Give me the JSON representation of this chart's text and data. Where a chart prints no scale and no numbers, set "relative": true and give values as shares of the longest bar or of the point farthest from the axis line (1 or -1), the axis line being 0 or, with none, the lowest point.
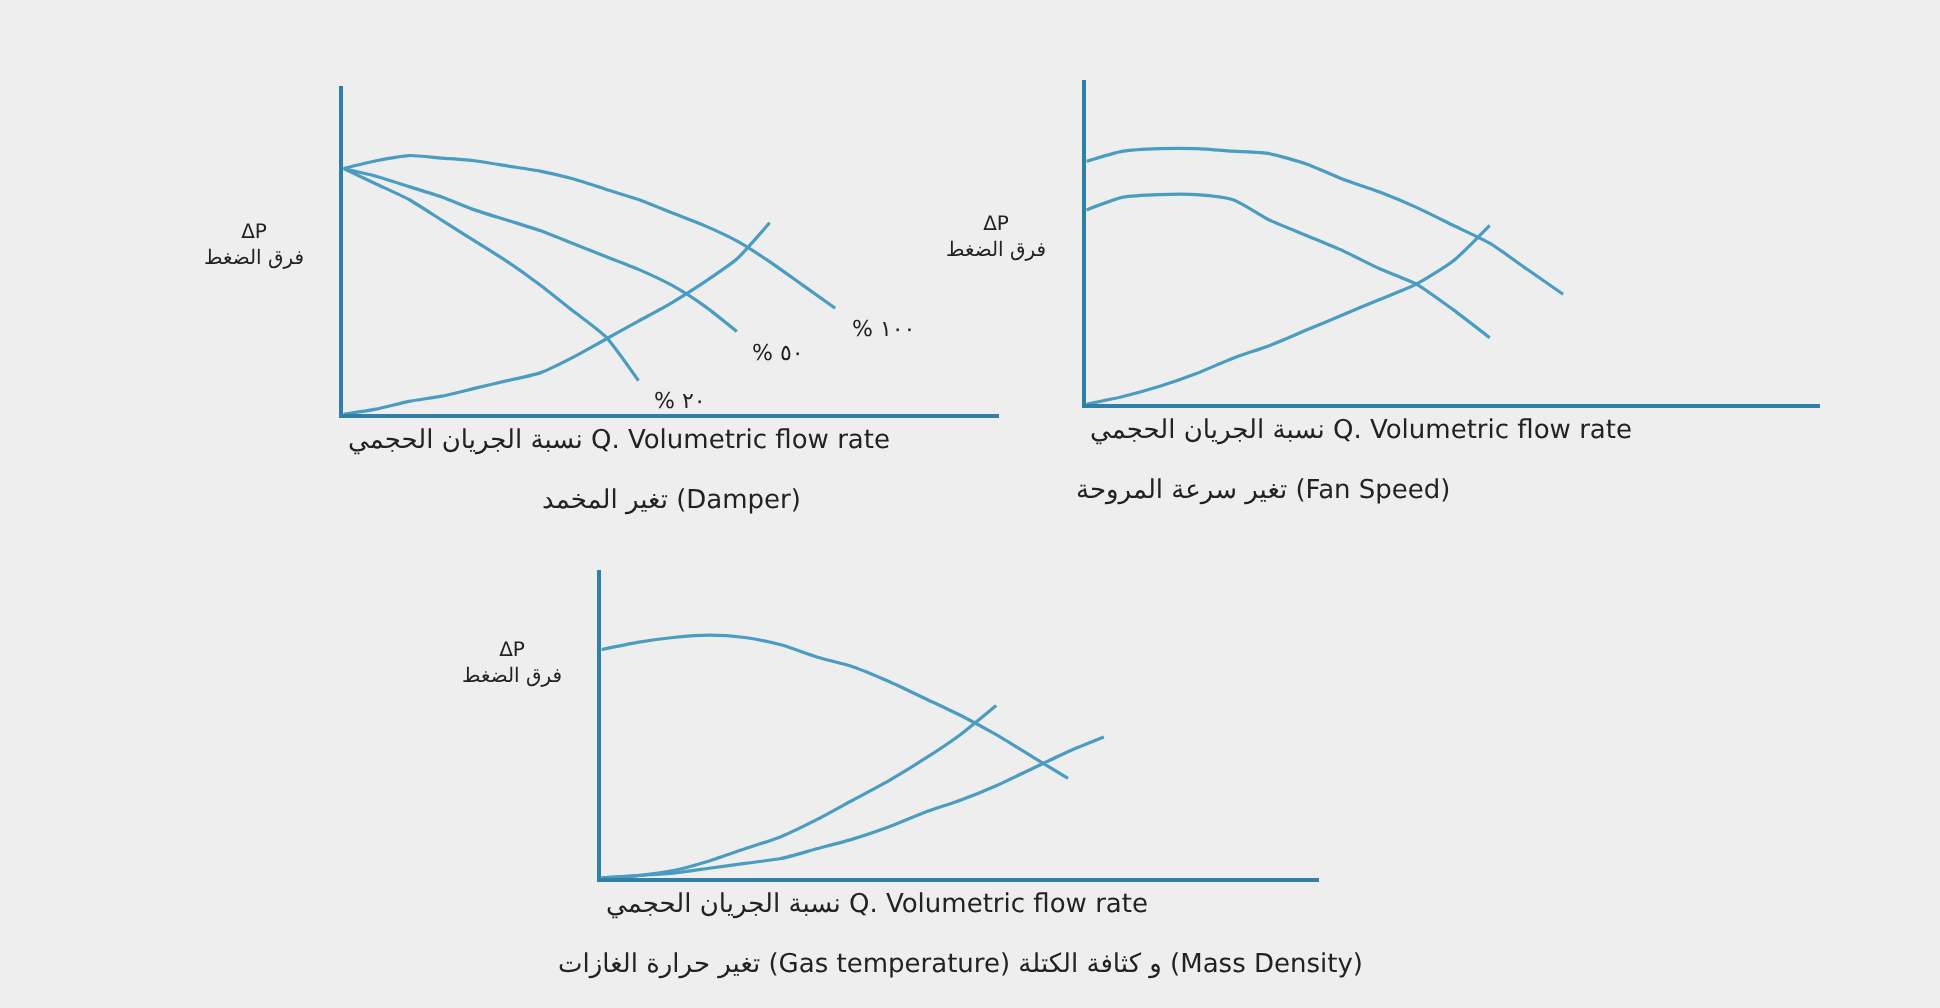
{
  "chart_data": [
    {
      "type": "line",
      "relative": true,
      "title": "تغير المخمد (Damper)",
      "xlabel": "نسبة الجريان الحجمي Q. Volumetric flow rate",
      "ylabel": "ΔP\nفرق الضغط",
      "legend": false,
      "grid": false,
      "categories": [
        null,
        null,
        null,
        null,
        null,
        null,
        null,
        null,
        null,
        null,
        null,
        null,
        null,
        null,
        null,
        null,
        null,
        null,
        null,
        null,
        null
      ],
      "series": [
        {
          "name": "% ١٠٠",
          "color": "#4a9cc0",
          "values": [
            0.95,
            0.98,
            1,
            0.99,
            0.98,
            0.96,
            0.94,
            0.91,
            0.87,
            0.83,
            0.78,
            0.73,
            0.67,
            0.59,
            0.5,
            0.41,
            null,
            null,
            null,
            null,
            null
          ]
        },
        {
          "name": "% ٥٠",
          "color": "#4a9cc0",
          "values": [
            0.95,
            0.92,
            0.88,
            0.84,
            0.79,
            0.75,
            0.71,
            0.66,
            0.61,
            0.56,
            0.5,
            0.42,
            0.32,
            null,
            null,
            null,
            null,
            null,
            null,
            null,
            null
          ]
        },
        {
          "name": "% ٢٠",
          "color": "#4a9cc0",
          "values": [
            0.95,
            0.89,
            0.83,
            0.75,
            0.67,
            0.59,
            0.5,
            0.4,
            0.3,
            0.13,
            null,
            null,
            null,
            null,
            null,
            null,
            null,
            null,
            null,
            null,
            null
          ]
        },
        {
          "color": "#4a9cc0",
          "values": [
            0,
            0.02,
            0.05,
            0.07,
            0.1,
            0.13,
            0.16,
            0.22,
            0.29,
            0.36,
            0.43,
            0.51,
            0.6,
            0.74,
            null,
            null,
            null,
            null,
            null,
            null,
            null
          ]
        }
      ]
    },
    {
      "type": "line",
      "relative": true,
      "title": "تغير سرعة المروحة (Fan Speed)",
      "xlabel": "نسبة الجريان الحجمي Q. Volumetric flow rate",
      "ylabel": "ΔP\nفرق الضغط",
      "legend": false,
      "grid": false,
      "categories": [
        null,
        null,
        null,
        null,
        null,
        null,
        null,
        null,
        null,
        null,
        null,
        null,
        null,
        null,
        null,
        null,
        null,
        null,
        null,
        null,
        null
      ],
      "series": [
        {
          "color": "#4a9cc0",
          "values": [
            0.95,
            0.99,
            1,
            1,
            0.99,
            0.98,
            0.94,
            0.88,
            0.83,
            0.77,
            0.7,
            0.63,
            0.53,
            0.43,
            null,
            null,
            null,
            null,
            null,
            null,
            null
          ]
        },
        {
          "color": "#4a9cc0",
          "values": [
            0.76,
            0.81,
            0.82,
            0.82,
            0.8,
            0.72,
            0.66,
            0.6,
            0.53,
            0.47,
            0.37,
            0.26,
            null,
            null,
            null,
            null,
            null,
            null,
            null,
            null,
            null
          ]
        },
        {
          "color": "#4a9cc0",
          "values": [
            0,
            0.03,
            0.07,
            0.12,
            0.18,
            0.23,
            0.29,
            0.35,
            0.41,
            0.47,
            0.56,
            0.7,
            null,
            null,
            null,
            null,
            null,
            null,
            null,
            null,
            null
          ]
        }
      ]
    },
    {
      "type": "line",
      "relative": true,
      "title": "تغير حرارة الغازات (Gas temperature) و كثافة الكتلة (Mass Density)",
      "xlabel": "نسبة الجريان الحجمي Q. Volumetric flow rate",
      "ylabel": "ΔP\nفرق الضغط",
      "legend": false,
      "grid": false,
      "categories": [
        null,
        null,
        null,
        null,
        null,
        null,
        null,
        null,
        null,
        null,
        null,
        null,
        null,
        null,
        null,
        null,
        null,
        null,
        null,
        null,
        null
      ],
      "series": [
        {
          "color": "#4a9cc0",
          "values": [
            0.94,
            0.97,
            0.99,
            1,
            0.99,
            0.96,
            0.91,
            0.87,
            0.81,
            0.74,
            0.67,
            0.59,
            0.5,
            0.41,
            null,
            null,
            null,
            null,
            null,
            null,
            null
          ]
        },
        {
          "color": "#4a9cc0",
          "values": [
            0,
            0.01,
            0.03,
            0.07,
            0.12,
            0.17,
            0.24,
            0.32,
            0.4,
            0.49,
            0.59,
            0.71,
            null,
            null,
            null,
            null,
            null,
            null,
            null,
            null,
            null
          ]
        },
        {
          "color": "#4a9cc0",
          "values": [
            0,
            0.01,
            0.02,
            0.04,
            0.06,
            0.08,
            0.12,
            0.16,
            0.21,
            0.27,
            0.32,
            0.38,
            0.45,
            0.52,
            0.58,
            null,
            null,
            null,
            null,
            null,
            null
          ]
        }
      ]
    }
  ]
}
